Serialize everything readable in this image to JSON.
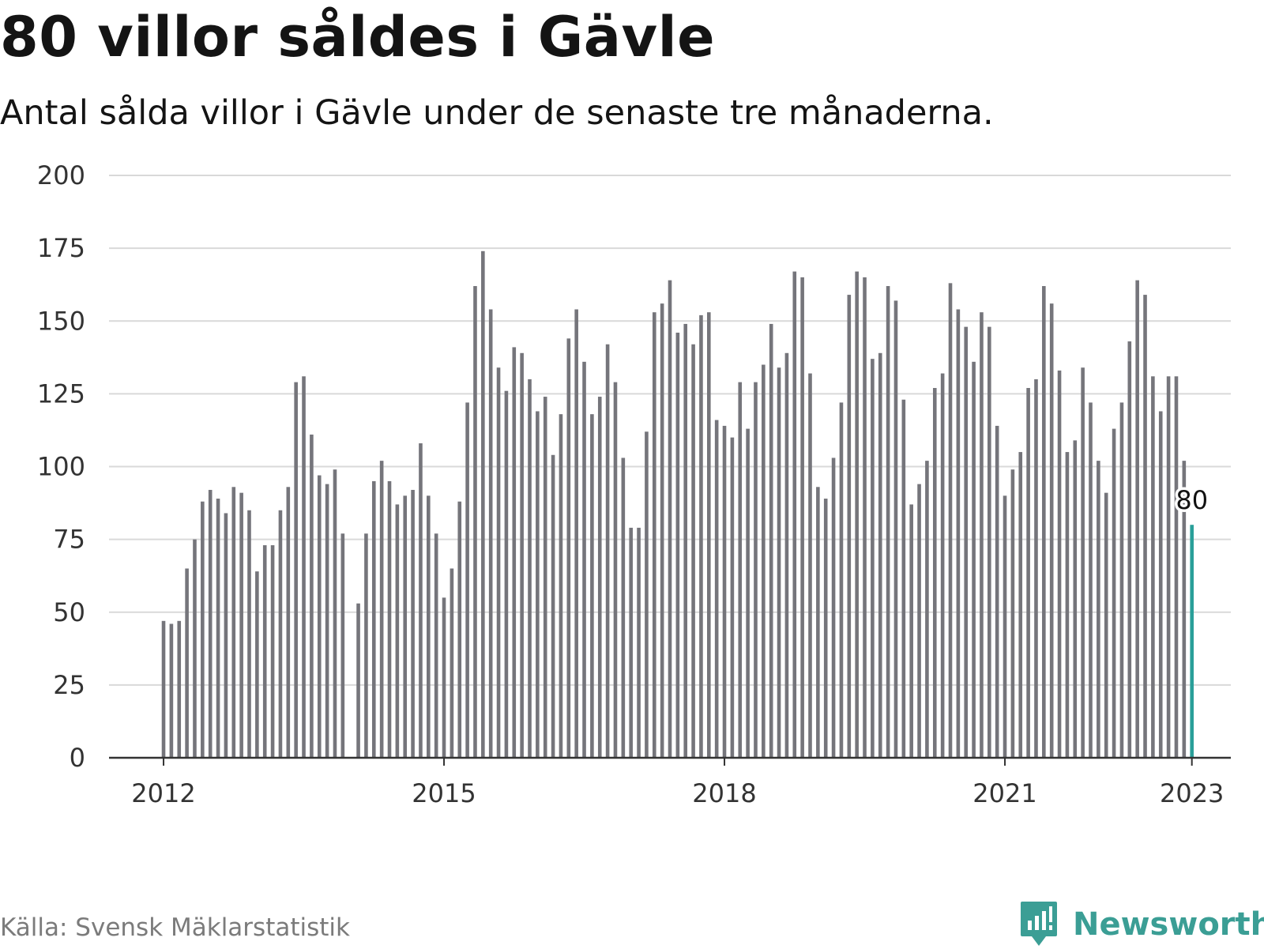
{
  "colors": {
    "bar": "#75757b",
    "highlight": "#2a9f99",
    "grid": "#d9d9d9",
    "axis": "#333333",
    "brand": "#3b9e95"
  },
  "chart_data": {
    "type": "bar",
    "title": "80 villor såldes i Gävle",
    "subtitle": "Antal sålda villor i Gävle under de senaste tre månaderna.",
    "xlabel": "",
    "ylabel": "",
    "ylim": [
      0,
      200
    ],
    "y_ticks": [
      "0",
      "25",
      "50",
      "75",
      "100",
      "125",
      "150",
      "175",
      "200"
    ],
    "x_ticks": [
      "2012",
      "2015",
      "2018",
      "2021",
      "2023"
    ],
    "x_range": [
      "2011-06",
      "2023-06"
    ],
    "grid": true,
    "highlight": "last bar",
    "start": "2012-01",
    "end": "2023-01",
    "values": [
      47,
      46,
      47,
      65,
      75,
      88,
      92,
      89,
      84,
      93,
      91,
      85,
      64,
      73,
      73,
      85,
      93,
      129,
      131,
      111,
      97,
      94,
      99,
      77,
      null,
      53,
      77,
      95,
      102,
      95,
      87,
      90,
      92,
      108,
      90,
      77,
      55,
      65,
      88,
      122,
      162,
      174,
      154,
      134,
      126,
      141,
      139,
      130,
      119,
      124,
      104,
      118,
      144,
      154,
      136,
      118,
      124,
      142,
      129,
      103,
      79,
      79,
      112,
      153,
      156,
      164,
      146,
      149,
      142,
      152,
      153,
      116,
      114,
      110,
      129,
      113,
      129,
      135,
      149,
      134,
      139,
      167,
      165,
      132,
      93,
      89,
      103,
      122,
      159,
      167,
      165,
      137,
      139,
      162,
      157,
      123,
      87,
      94,
      102,
      127,
      132,
      163,
      154,
      148,
      136,
      153,
      148,
      114,
      90,
      99,
      105,
      127,
      130,
      162,
      156,
      133,
      105,
      109,
      134,
      122,
      102,
      91,
      113,
      122,
      143,
      164,
      159,
      131,
      119,
      131,
      131,
      102,
      80
    ],
    "data_labels": [
      "80"
    ]
  },
  "footer": {
    "source": "Källa: Svensk Mäklarstatistik",
    "brand": "Newsworthy"
  }
}
